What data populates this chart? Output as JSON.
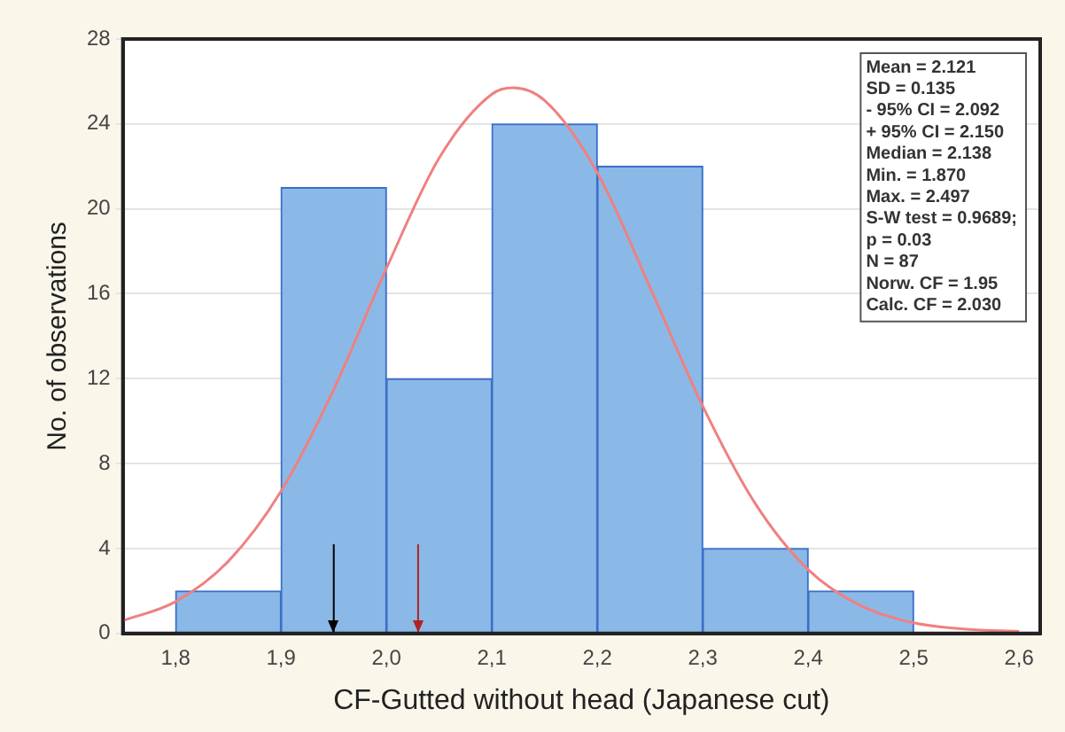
{
  "chart_data": {
    "type": "histogram",
    "xlabel": "CF-Gutted without head (Japanese cut)",
    "ylabel": "No. of observations",
    "bins": [
      1.8,
      1.9,
      2.0,
      2.1,
      2.2,
      2.3,
      2.4,
      2.5
    ],
    "values": [
      2,
      21,
      12,
      24,
      22,
      4,
      2
    ],
    "color": "#8ab9e8",
    "series": [
      {
        "type": "line",
        "color": "#f08080",
        "marker": "none",
        "x": [
          1.75,
          1.8,
          1.85,
          1.9,
          1.95,
          2.0,
          2.05,
          2.1,
          2.12,
          2.15,
          2.2,
          2.25,
          2.3,
          2.35,
          2.4,
          2.45,
          2.5,
          2.55,
          2.6
        ],
        "values": [
          0.6,
          1.5,
          3.4,
          6.7,
          11.5,
          17.2,
          22.4,
          25.4,
          25.7,
          25.1,
          21.7,
          16.3,
          10.7,
          6.1,
          3.0,
          1.3,
          0.5,
          0.2,
          0.1
        ]
      }
    ],
    "xlim": [
      1.75,
      2.62
    ],
    "xticks": [
      {
        "value": 1.8,
        "label": "1,8"
      },
      {
        "value": 1.9,
        "label": "1,9"
      },
      {
        "value": 2.0,
        "label": "2,0"
      },
      {
        "value": 2.1,
        "label": "2,1"
      },
      {
        "value": 2.2,
        "label": "2,2"
      },
      {
        "value": 2.3,
        "label": "2,3"
      },
      {
        "value": 2.4,
        "label": "2,4"
      },
      {
        "value": 2.5,
        "label": "2,5"
      },
      {
        "value": 2.6,
        "label": "2,6"
      }
    ],
    "ylim": [
      0,
      28
    ],
    "yticks": [
      0,
      4,
      8,
      12,
      16,
      20,
      24,
      28
    ],
    "grid": "y",
    "legend": false,
    "ref_lines": [
      {
        "axis": "x",
        "value": 1.95,
        "color": "#000000"
      },
      {
        "axis": "x",
        "value": 2.03,
        "color": "#b22222"
      }
    ],
    "annotations": [
      "Mean = 2.121",
      "SD = 0.135",
      "- 95% CI = 2.092",
      "+ 95% CI = 2.150",
      "Median = 2.138",
      "Min. = 1.870",
      "Max. = 2.497",
      "S-W test = 0.9689;",
      "p = 0.03",
      "N = 87",
      "Norw. CF = 1.95",
      "Calc. CF = 2.030"
    ]
  }
}
